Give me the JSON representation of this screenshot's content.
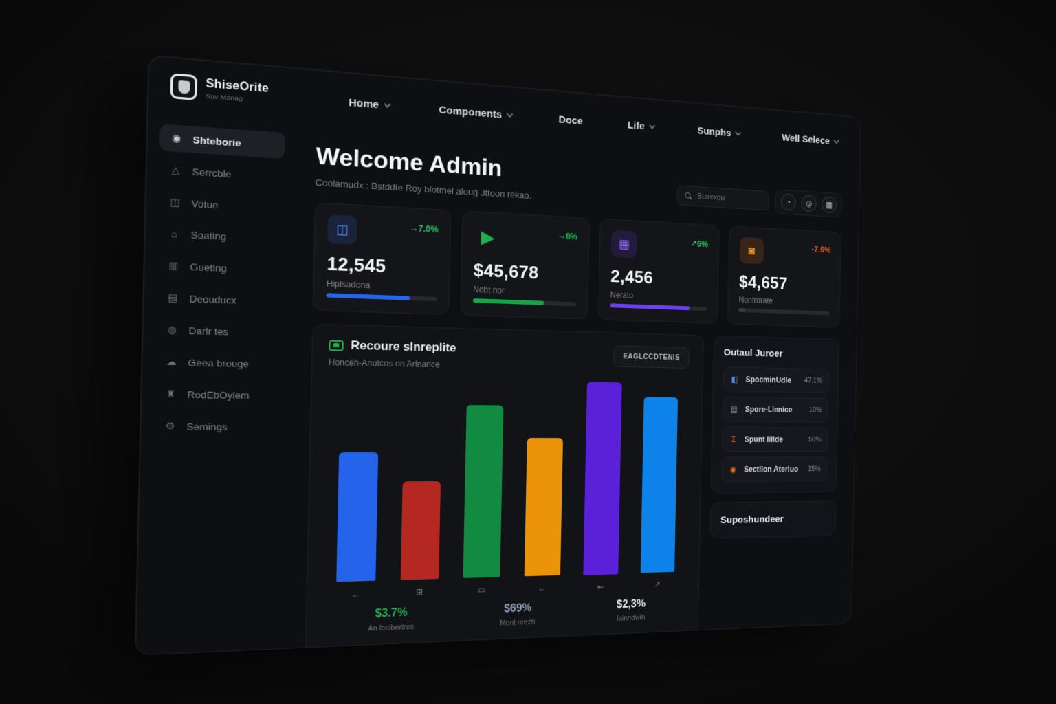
{
  "brand": {
    "name": "ShiseOrite",
    "subtitle": "Suv Manag"
  },
  "nav": {
    "items": [
      {
        "label": "Home"
      },
      {
        "label": "Components"
      },
      {
        "label": "Doce"
      },
      {
        "label": "Life"
      },
      {
        "label": "Sunphs"
      },
      {
        "label": "Well Selece"
      }
    ]
  },
  "sidebar": {
    "items": [
      {
        "label": "Shteborie",
        "icon": "◉",
        "active": true
      },
      {
        "label": "Serrcble",
        "icon": "△"
      },
      {
        "label": "Votue",
        "icon": "◫"
      },
      {
        "label": "Soating",
        "icon": "⌂"
      },
      {
        "label": "Guetlng",
        "icon": "▥"
      },
      {
        "label": "Deouducx",
        "icon": "▤"
      },
      {
        "label": "Darlr tes",
        "icon": "◍"
      },
      {
        "label": "Geea brouge",
        "icon": "☁"
      },
      {
        "label": "RodEbOylem",
        "icon": "♜"
      },
      {
        "label": "Semings",
        "icon": "⚙"
      }
    ]
  },
  "header": {
    "title": "Welcome Admin",
    "subtitle": "Coolamudx : Bstddte Roy blotmel aloug Jttoon rekao."
  },
  "search": {
    "placeholder": "Bulrcxqu"
  },
  "topbar_buttons": [
    {
      "icon": "◔"
    },
    {
      "icon": "◎"
    },
    {
      "icon": "▦"
    }
  ],
  "stat_cards": [
    {
      "icon": "◫",
      "icon_color": "#4f8df9",
      "tile_bg": "rgba(59,110,246,0.16)",
      "badge": "→7.0%",
      "badge_color": "#22c55e",
      "value": "12,545",
      "label": "Hiplsadona",
      "progress_pct": 75,
      "accent": "#2664eb"
    },
    {
      "icon": "▶",
      "icon_color": "#1fae4b",
      "tile_bg": "transparent",
      "badge": "→8%",
      "badge_color": "#22c55e",
      "value": "$45,678",
      "label": "Nobt nor",
      "progress_pct": 68,
      "accent": "#17a349"
    },
    {
      "icon": "▦",
      "icon_color": "#8b63f8",
      "tile_bg": "rgba(109,63,240,0.16)",
      "badge": "↗6%",
      "badge_color": "#22c55e",
      "value": "2,456",
      "label": "Nerato",
      "progress_pct": 82,
      "accent": "#6d3ff0"
    },
    {
      "icon": "◙",
      "icon_color": "#f59524",
      "tile_bg": "rgba(210,110,20,0.18)",
      "badge": "-7.5%",
      "badge_color": "#e25822",
      "value": "$4,657",
      "label": "Nontrorate",
      "progress_pct": 7,
      "accent": "#3a3d42"
    }
  ],
  "chart_card": {
    "title": "Recoure slnreplite",
    "subtitle": "Honceh-Anutcos on Arlnance",
    "button_label": "EAGLCCDTENIS",
    "footer_stats": [
      {
        "value": "$3.7%",
        "label": "An locibertros",
        "color": "#22b14c"
      },
      {
        "value": "$69%",
        "label": "Mont nrezh",
        "color": "#8fa0b5"
      },
      {
        "value": "$2,3%",
        "label": "fainndwih",
        "color": "#e9eaec"
      }
    ]
  },
  "chart_data": {
    "type": "bar",
    "title": "Recoure slnreplite",
    "categories": [
      "←",
      "⊞",
      "▭",
      "←",
      "⇤",
      "↗"
    ],
    "values": [
      58,
      45,
      80,
      65,
      95,
      85
    ],
    "colors": [
      "#2563eb",
      "#b42821",
      "#128a41",
      "#eb9409",
      "#5b21d8",
      "#0d82e8"
    ],
    "ylim": [
      0,
      100
    ],
    "grid": false,
    "legend": false
  },
  "right_panel": {
    "title": "Outaul Juroer",
    "items": [
      {
        "icon": "◧",
        "color": "#4f8df9",
        "name": "SpocminUdle",
        "value": "47.1%"
      },
      {
        "icon": "▤",
        "color": "#9aa1ab",
        "name": "Spore-Lienice",
        "value": "10%"
      },
      {
        "icon": "Σ",
        "color": "#e0492e",
        "name": "Spunt lillde",
        "value": "50%"
      },
      {
        "icon": "◉",
        "color": "#f07018",
        "name": "Sectlion Ateriuo",
        "value": "15%"
      }
    ]
  },
  "bottom_panel": {
    "title": "Suposhundeer"
  }
}
